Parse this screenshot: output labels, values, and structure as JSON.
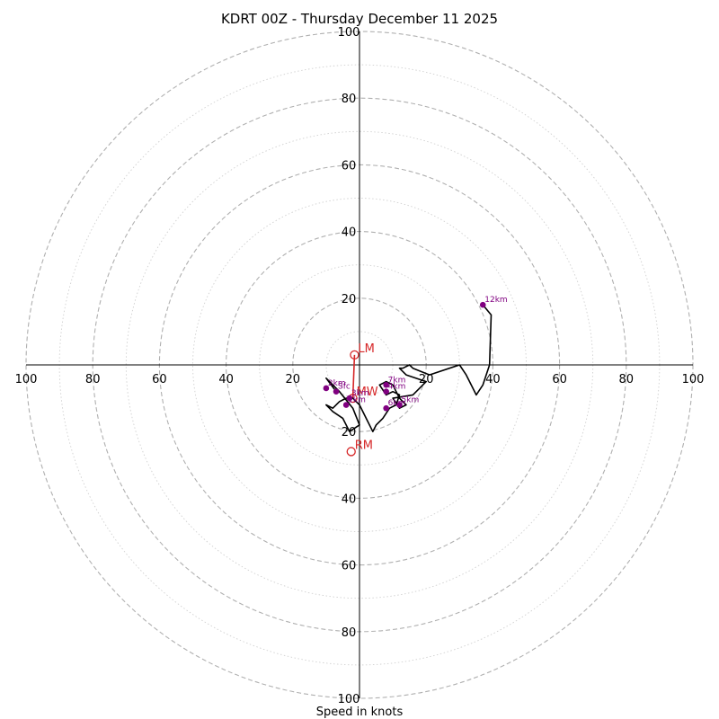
{
  "chart_data": {
    "type": "hodograph",
    "title": "KDRT 00Z - Thursday December 11 2025",
    "xlabel": "Speed in knots",
    "max_speed": 100,
    "ring_step_major": 20,
    "ring_step_minor": 10,
    "x_tick_labels": [
      "100",
      "80",
      "60",
      "40",
      "20",
      "20",
      "40",
      "60",
      "80",
      "100"
    ],
    "x_tick_values": [
      -100,
      -80,
      -60,
      -40,
      -20,
      20,
      40,
      60,
      80,
      100
    ],
    "y_tick_labels": [
      "100",
      "80",
      "60",
      "40",
      "20",
      "20",
      "40",
      "60",
      "80",
      "100"
    ],
    "y_tick_values": [
      100,
      80,
      60,
      40,
      20,
      -20,
      -40,
      -60,
      -80,
      -100
    ],
    "hodograph_uv": [
      [
        -7,
        -8
      ],
      [
        -10,
        -4
      ],
      [
        -6,
        -8
      ],
      [
        -2,
        -13
      ],
      [
        0,
        -18
      ],
      [
        -3,
        -20
      ],
      [
        -5,
        -16
      ],
      [
        -8,
        -14
      ],
      [
        -10,
        -12
      ],
      [
        -8,
        -13
      ],
      [
        -6,
        -11
      ],
      [
        -4,
        -10
      ],
      [
        -2,
        -10
      ],
      [
        0,
        -12
      ],
      [
        2,
        -16
      ],
      [
        4,
        -20
      ],
      [
        5,
        -18
      ],
      [
        7,
        -16
      ],
      [
        9,
        -13
      ],
      [
        11,
        -12
      ],
      [
        12,
        -9
      ],
      [
        10,
        -8
      ],
      [
        8,
        -9
      ],
      [
        6,
        -6
      ],
      [
        8,
        -5
      ],
      [
        10,
        -6
      ],
      [
        12,
        -10
      ],
      [
        14,
        -12
      ],
      [
        12,
        -13
      ],
      [
        10,
        -10
      ],
      [
        16,
        -9
      ],
      [
        20,
        -5
      ],
      [
        14,
        -3
      ],
      [
        12,
        -1
      ],
      [
        13,
        -1
      ],
      [
        15,
        0
      ],
      [
        16,
        -1
      ],
      [
        21,
        -3
      ],
      [
        30,
        0
      ],
      [
        32,
        -3
      ],
      [
        35,
        -9
      ],
      [
        37,
        -6
      ],
      [
        39,
        0
      ],
      [
        39.5,
        15
      ],
      [
        37,
        18
      ]
    ],
    "height_markers": [
      {
        "label": "Sfc",
        "u": -7,
        "v": -8
      },
      {
        "label": "1km",
        "u": -4,
        "v": -12
      },
      {
        "label": "2km",
        "u": -10,
        "v": -7
      },
      {
        "label": "3km",
        "u": -3,
        "v": -10
      },
      {
        "label": "4km",
        "u": 8,
        "v": -8
      },
      {
        "label": "5km",
        "u": 12,
        "v": -12
      },
      {
        "label": "6km",
        "u": 8,
        "v": -13
      },
      {
        "label": "7km",
        "u": 8,
        "v": -6
      },
      {
        "label": "12km",
        "u": 37,
        "v": 18
      }
    ],
    "storm_motion": [
      {
        "label": "LM",
        "u": -1.5,
        "v": 3
      },
      {
        "label": "MW",
        "u": -2,
        "v": -10
      },
      {
        "label": "RM",
        "u": -2.5,
        "v": -26
      }
    ],
    "colors": {
      "line": "#000000",
      "markers": "#800080",
      "storm_motion": "#d62728",
      "grid": "#b0b0b0",
      "axes": "#000000"
    }
  }
}
